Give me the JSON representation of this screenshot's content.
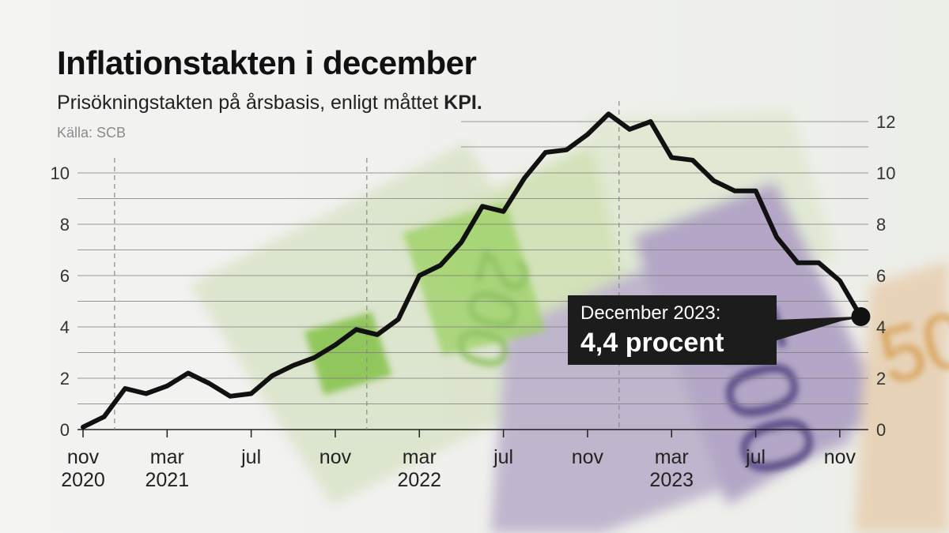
{
  "header": {
    "title": "Inflationstakten i december",
    "subtitle_text": "Prisökningstakten på årsbasis, enligt måttet ",
    "subtitle_bold": "KPI.",
    "source": "Källa: SCB"
  },
  "callout": {
    "line1": "December 2023:",
    "line2": "4,4 procent"
  },
  "chart_data": {
    "type": "line",
    "x": [
      "2020-11",
      "2020-12",
      "2021-01",
      "2021-02",
      "2021-03",
      "2021-04",
      "2021-05",
      "2021-06",
      "2021-07",
      "2021-08",
      "2021-09",
      "2021-10",
      "2021-11",
      "2021-12",
      "2022-01",
      "2022-02",
      "2022-03",
      "2022-04",
      "2022-05",
      "2022-06",
      "2022-07",
      "2022-08",
      "2022-09",
      "2022-10",
      "2022-11",
      "2022-12",
      "2023-01",
      "2023-02",
      "2023-03",
      "2023-04",
      "2023-05",
      "2023-06",
      "2023-07",
      "2023-08",
      "2023-09",
      "2023-10",
      "2023-11",
      "2023-12"
    ],
    "series": [
      {
        "name": "",
        "values": [
          0.1,
          0.5,
          1.6,
          1.4,
          1.7,
          2.2,
          1.8,
          1.3,
          1.4,
          2.1,
          2.5,
          2.8,
          3.3,
          3.9,
          3.7,
          4.3,
          6.0,
          6.4,
          7.3,
          8.7,
          8.5,
          9.8,
          10.8,
          10.9,
          11.5,
          12.3,
          11.7,
          12.0,
          10.6,
          10.5,
          9.7,
          9.3,
          9.3,
          7.5,
          6.5,
          6.5,
          5.8,
          4.4
        ]
      }
    ],
    "left_axis": {
      "ylim": [
        0,
        10.6
      ],
      "ticks": [
        "0",
        "2",
        "4",
        "6",
        "8",
        "10"
      ]
    },
    "right_axis": {
      "ylim": [
        0,
        12.6
      ],
      "ticks": [
        "0",
        "2",
        "4",
        "6",
        "8",
        "10",
        "12"
      ]
    },
    "x_tick_labels": [
      {
        "at": "2020-11",
        "month": "nov",
        "year": "2020"
      },
      {
        "at": "2021-03",
        "month": "mar",
        "year": "2021"
      },
      {
        "at": "2021-07",
        "month": "jul",
        "year": ""
      },
      {
        "at": "2021-11",
        "month": "nov",
        "year": ""
      },
      {
        "at": "2022-03",
        "month": "mar",
        "year": "2022"
      },
      {
        "at": "2022-07",
        "month": "jul",
        "year": ""
      },
      {
        "at": "2022-11",
        "month": "nov",
        "year": ""
      },
      {
        "at": "2023-03",
        "month": "mar",
        "year": "2023"
      },
      {
        "at": "2023-07",
        "month": "jul",
        "year": ""
      },
      {
        "at": "2023-11",
        "month": "nov",
        "year": ""
      }
    ],
    "year_dividers": [
      "2021-01",
      "2022-01",
      "2023-01"
    ],
    "highlight": {
      "at": "2023-12",
      "value": 4.4
    },
    "grid": true,
    "line_color": "#111111"
  }
}
